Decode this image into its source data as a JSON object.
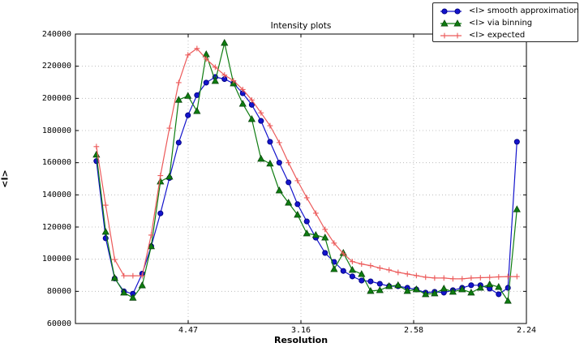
{
  "chart": {
    "title": "Intensity plots",
    "xlabel": "Resolution",
    "ylabel": "<I>"
  },
  "legend": {
    "items": [
      {
        "label": "<I> smooth approximation",
        "marker": "circle",
        "color": "#1414cc"
      },
      {
        "label": "<I> via binning",
        "marker": "triangle",
        "color": "#0e7c10"
      },
      {
        "label": "<I> expected",
        "marker": "plus",
        "color": "#ec5a5a"
      }
    ]
  },
  "chart_data": {
    "type": "line",
    "title": "Intensity plots",
    "xlabel": "Resolution",
    "ylabel": "<I>",
    "x_axis_note": "x axis is linear in 1/d^2; tick labels give resolution d in Angstrom",
    "xlim": [
      0,
      0.2
    ],
    "ylim": [
      60000,
      240000
    ],
    "grid": true,
    "legend_position": "upper right, outside top",
    "xticks": {
      "values": [
        0.05,
        0.1,
        0.15,
        0.2
      ],
      "labels": [
        "4.47",
        "3.16",
        "2.58",
        "2.24"
      ]
    },
    "yticks": [
      60000,
      80000,
      100000,
      120000,
      140000,
      160000,
      180000,
      200000,
      220000,
      240000
    ],
    "x": [
      0.0093,
      0.0134,
      0.0174,
      0.0215,
      0.0255,
      0.0296,
      0.0336,
      0.0377,
      0.0417,
      0.0458,
      0.0499,
      0.0539,
      0.058,
      0.062,
      0.0661,
      0.0701,
      0.0742,
      0.0782,
      0.0823,
      0.0863,
      0.0904,
      0.0945,
      0.0985,
      0.1026,
      0.1066,
      0.1107,
      0.1147,
      0.1188,
      0.1228,
      0.1269,
      0.1309,
      0.135,
      0.1391,
      0.1431,
      0.1472,
      0.1512,
      0.1553,
      0.1593,
      0.1634,
      0.1674,
      0.1715,
      0.1755,
      0.1796,
      0.1837,
      0.1877,
      0.1918,
      0.1958
    ],
    "series": [
      {
        "name": "<I> smooth approximation",
        "color": "#1414cc",
        "marker": "circle",
        "marker_edge": "#000080",
        "values": [
          161000,
          113000,
          88000,
          80000,
          78500,
          91000,
          108000,
          128500,
          150500,
          172500,
          189500,
          202000,
          209800,
          213300,
          212000,
          209300,
          203200,
          196000,
          186000,
          173000,
          160000,
          147800,
          134200,
          123500,
          113400,
          103900,
          98300,
          92700,
          89300,
          86700,
          86200,
          84700,
          83200,
          83200,
          82200,
          81200,
          79200,
          79700,
          79200,
          80700,
          82200,
          83800,
          83800,
          81700,
          78200,
          82200,
          173000
        ]
      },
      {
        "name": "<I> via binning",
        "color": "#0e7c10",
        "marker": "triangle",
        "marker_edge": "#063f08",
        "values": [
          165000,
          117000,
          88300,
          79200,
          76000,
          83700,
          108000,
          148300,
          151300,
          199100,
          201500,
          192100,
          227400,
          210800,
          234500,
          209300,
          196600,
          187100,
          162400,
          159400,
          142700,
          135100,
          127600,
          116000,
          115000,
          113400,
          93800,
          103900,
          93300,
          90700,
          80200,
          80700,
          83200,
          83800,
          80200,
          81200,
          78200,
          78700,
          81700,
          79700,
          81200,
          79200,
          82200,
          84300,
          82700,
          74100,
          131000
        ]
      },
      {
        "name": "<I> expected",
        "color": "#ec5a5a",
        "marker": "plus",
        "marker_edge": "#ec5a5a",
        "values": [
          170000,
          133600,
          99800,
          89700,
          89700,
          89700,
          115000,
          152000,
          181500,
          209800,
          227000,
          231000,
          224500,
          219400,
          214500,
          211000,
          205500,
          199000,
          191000,
          183000,
          172500,
          160000,
          148800,
          138200,
          128600,
          118500,
          110000,
          103400,
          98500,
          97000,
          96000,
          94500,
          93300,
          91800,
          90800,
          89800,
          88800,
          88300,
          88300,
          87800,
          87800,
          88300,
          88500,
          88700,
          89000,
          89200,
          89200
        ]
      }
    ]
  }
}
